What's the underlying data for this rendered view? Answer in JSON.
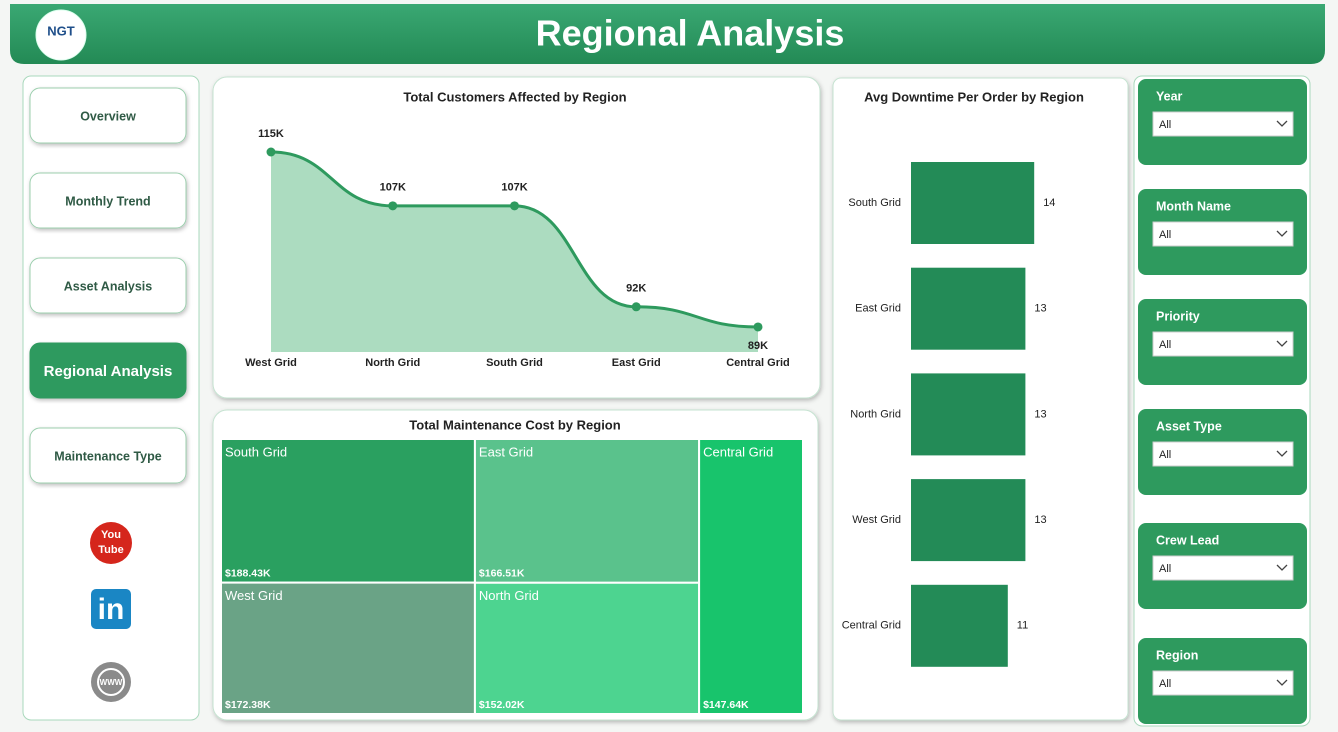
{
  "header": {
    "title": "Regional Analysis",
    "logo": "NGT"
  },
  "nav": [
    "Overview",
    "Monthly Trend",
    "Asset Analysis",
    "Regional Analysis",
    "Maintenance Type"
  ],
  "active_nav": 3,
  "social": {
    "youtube": [
      "You",
      "Tube"
    ],
    "linkedin": "in",
    "web": "WWW"
  },
  "filters": [
    {
      "label": "Year",
      "value": "All"
    },
    {
      "label": "Month Name",
      "value": "All"
    },
    {
      "label": "Priority",
      "value": "All"
    },
    {
      "label": "Asset Type",
      "value": "All"
    },
    {
      "label": "Crew Lead",
      "value": "All"
    },
    {
      "label": "Region",
      "value": "All"
    }
  ],
  "chart_data": [
    {
      "type": "area",
      "title": "Total Customers Affected by Region",
      "categories": [
        "West Grid",
        "North Grid",
        "South Grid",
        "East Grid",
        "Central Grid"
      ],
      "values": [
        115000,
        107000,
        107000,
        92000,
        89000
      ],
      "value_labels": [
        "115K",
        "107K",
        "107K",
        "92K",
        "89K"
      ],
      "color": "#2e9a5e",
      "fill": "#acdcc0"
    },
    {
      "type": "treemap",
      "title": "Total Maintenance Cost by Region",
      "categories": [
        "South Grid",
        "West Grid",
        "East Grid",
        "North Grid",
        "Central Grid"
      ],
      "values": [
        188430,
        172380,
        166510,
        152020,
        147640
      ],
      "value_labels": [
        "$188.43K",
        "$172.38K",
        "$166.51K",
        "$152.02K",
        "$147.64K"
      ],
      "colors": [
        "#2aa060",
        "#6aa386",
        "#5ac28c",
        "#4dd490",
        "#18c46c"
      ]
    },
    {
      "type": "hbar",
      "title": "Avg Downtime Per Order by Region",
      "categories": [
        "South Grid",
        "East Grid",
        "North Grid",
        "West Grid",
        "Central Grid"
      ],
      "values": [
        14,
        13,
        13,
        13,
        11
      ],
      "color": "#238b57"
    }
  ]
}
